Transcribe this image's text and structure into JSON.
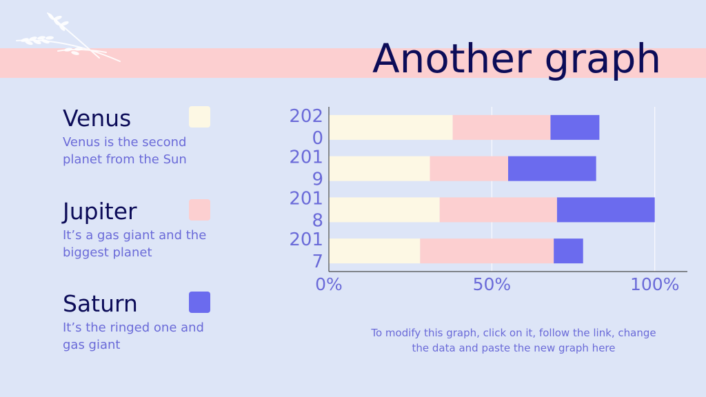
{
  "slide": {
    "title": "Another graph",
    "note": "To modify this graph, click on it, follow the link, change the data and paste the new graph here"
  },
  "legend": [
    {
      "name": "Venus",
      "desc": "Venus is the second planet from the Sun",
      "color": "#fdf8e4"
    },
    {
      "name": "Jupiter",
      "desc": "It’s a gas giant and the biggest planet",
      "color": "#fccfd0"
    },
    {
      "name": "Saturn",
      "desc": "It’s the ringed one and gas giant",
      "color": "#6b6bee"
    }
  ],
  "colors": {
    "background": "#dde5f7",
    "band": "#fccfd0",
    "title_text": "#0c0c58",
    "body_text": "#6a6ad8",
    "axis": "#4a4a4a",
    "grid": "#ffffff"
  },
  "chart_data": {
    "type": "bar",
    "orientation": "horizontal",
    "stacked": true,
    "categories": [
      "2020",
      "2019",
      "2018",
      "2017"
    ],
    "category_label_lines": [
      [
        "202",
        "0"
      ],
      [
        "201",
        "9"
      ],
      [
        "201",
        "8"
      ],
      [
        "201",
        "7"
      ]
    ],
    "series": [
      {
        "name": "Venus",
        "values": [
          38,
          31,
          34,
          28
        ]
      },
      {
        "name": "Jupiter",
        "values": [
          30,
          24,
          36,
          41
        ]
      },
      {
        "name": "Saturn",
        "values": [
          15,
          27,
          30,
          9
        ]
      }
    ],
    "xlim": [
      0,
      110
    ],
    "xticks": [
      0,
      50,
      100
    ],
    "xtick_labels": [
      "0%",
      "50%",
      "100%"
    ],
    "grid": true,
    "legend": "left"
  }
}
